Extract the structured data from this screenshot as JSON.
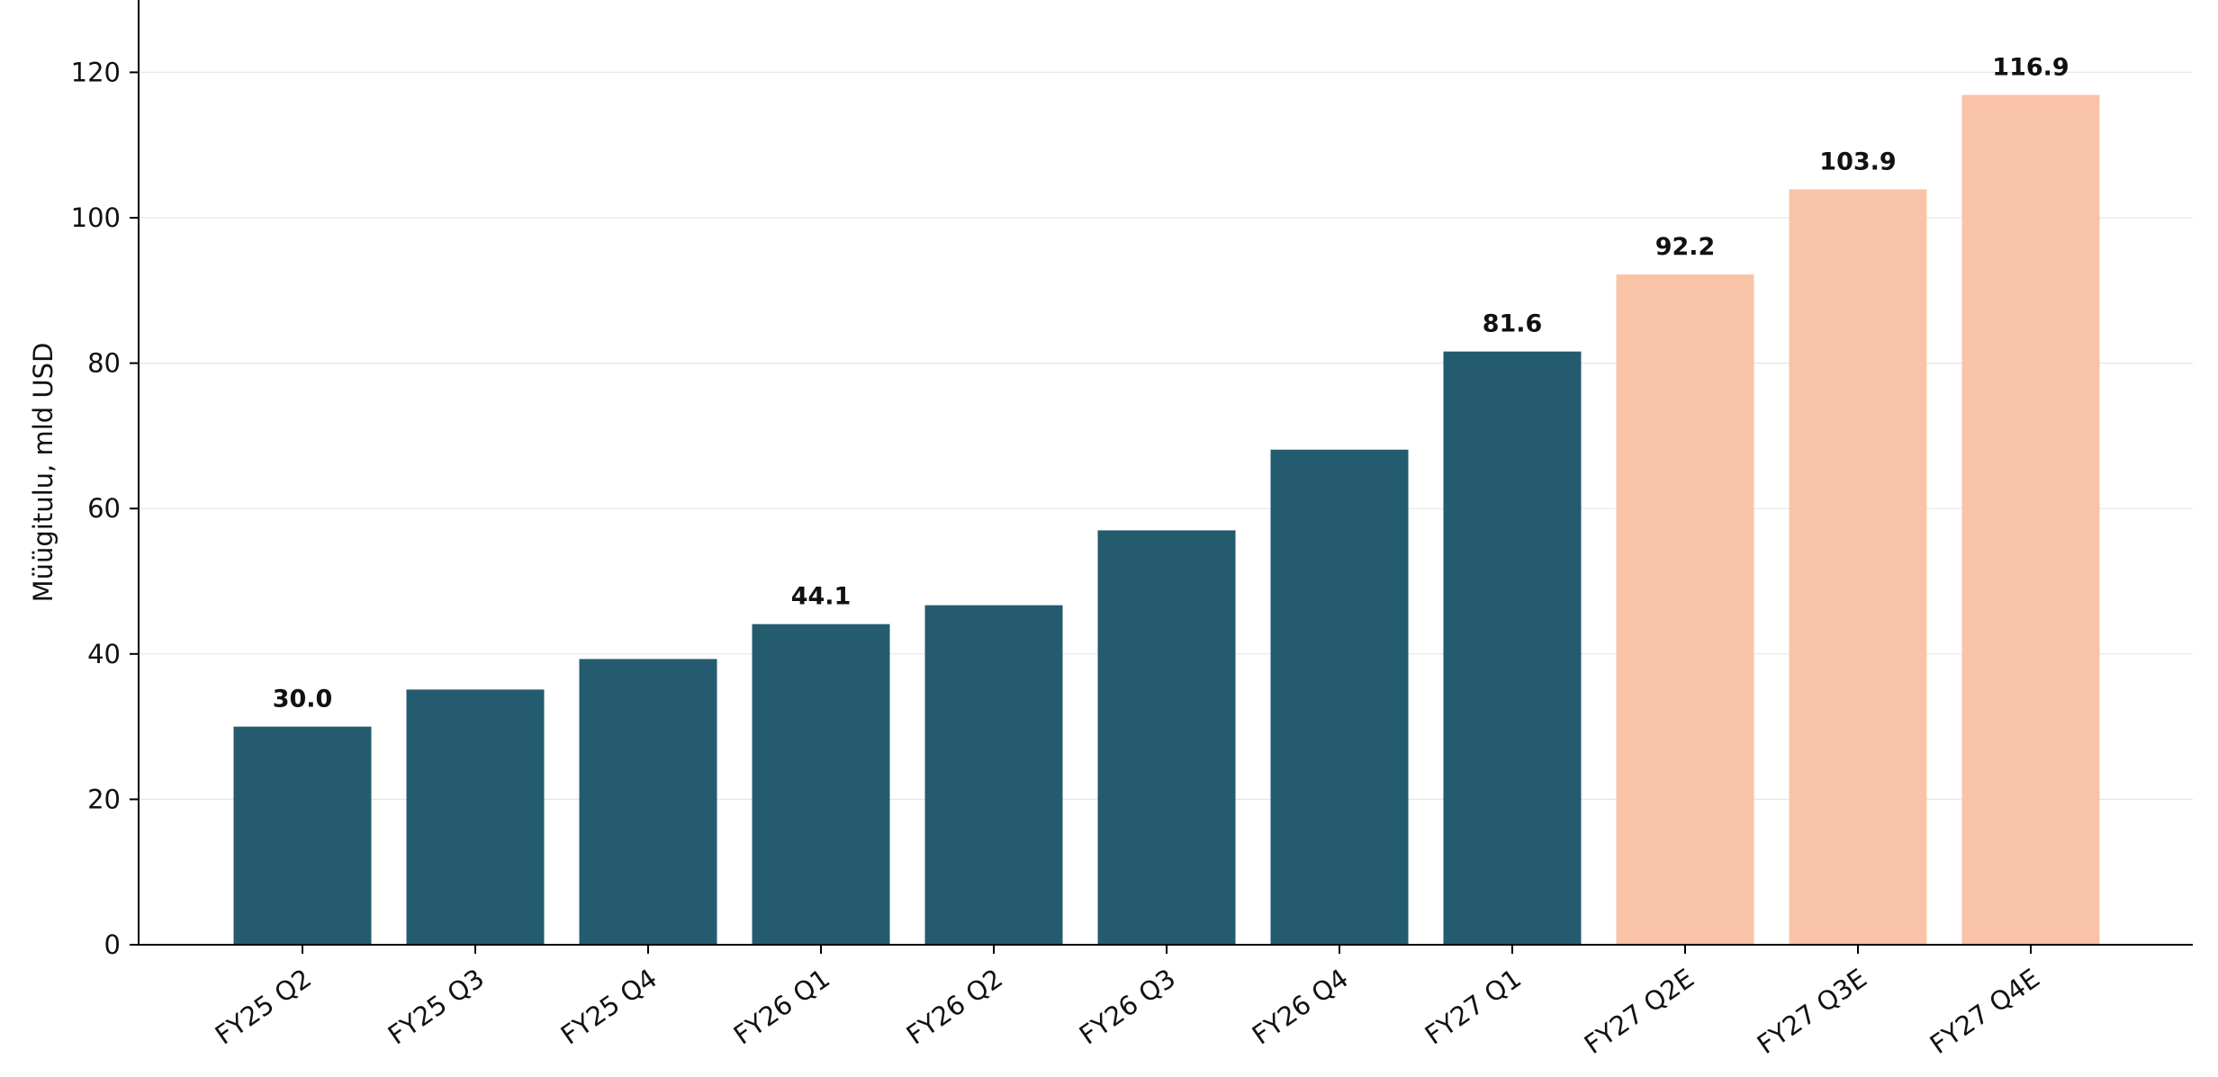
{
  "chart_data": {
    "type": "bar",
    "title": "",
    "xlabel": "",
    "ylabel": "Müügitulu, mld USD",
    "ylim": [
      0,
      130
    ],
    "yticks": [
      0,
      20,
      40,
      60,
      80,
      100,
      120
    ],
    "grid": true,
    "categories": [
      "FY25 Q2",
      "FY25 Q3",
      "FY25 Q4",
      "FY26 Q1",
      "FY26 Q2",
      "FY26 Q3",
      "FY26 Q4",
      "FY27 Q1",
      "FY27 Q2E",
      "FY27 Q3E",
      "FY27 Q4E"
    ],
    "values": [
      30.0,
      35.1,
      39.3,
      44.1,
      46.7,
      57.0,
      68.1,
      81.6,
      92.2,
      103.9,
      116.9
    ],
    "estimate": [
      false,
      false,
      false,
      false,
      false,
      false,
      false,
      false,
      true,
      true,
      true
    ],
    "data_labels": [
      "30.0",
      "",
      "",
      "44.1",
      "",
      "",
      "",
      "81.6",
      "92.2",
      "103.9",
      "116.9"
    ],
    "colors": {
      "actual": "#245b6e",
      "estimate": "#f9c3a8",
      "grid": "#e6e6e6",
      "axis": "#000000"
    }
  }
}
